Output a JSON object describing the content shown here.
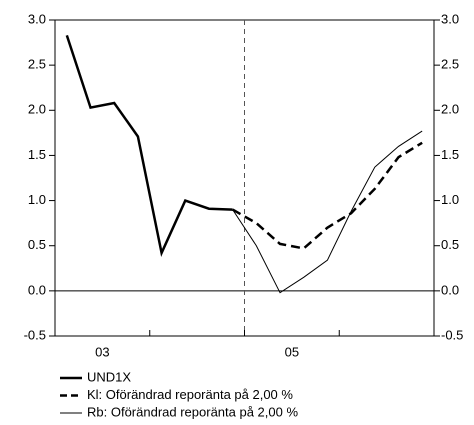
{
  "chart_data": {
    "type": "line",
    "xlim": [
      2003,
      2007
    ],
    "xticks": [
      2003,
      2004,
      2005,
      2006,
      2007
    ],
    "xlabels": [
      {
        "value": 2003.5,
        "label": "03"
      },
      {
        "value": 2005.5,
        "label": "05"
      }
    ],
    "vline": 2005,
    "ylim": [
      -0.5,
      3.0
    ],
    "yticks": [
      {
        "value": -0.5,
        "label": "-0.5"
      },
      {
        "value": 0,
        "label": "0.0"
      },
      {
        "value": 0.5,
        "label": "0.5"
      },
      {
        "value": 1,
        "label": "1.0"
      },
      {
        "value": 1.5,
        "label": "1.5"
      },
      {
        "value": 2,
        "label": "2.0"
      },
      {
        "value": 2.5,
        "label": "2.5"
      },
      {
        "value": 3,
        "label": "3.0"
      }
    ],
    "y2lim": [
      -0.5,
      3.0
    ],
    "y2ticks": [
      {
        "value": -0.5,
        "label": "-0.5"
      },
      {
        "value": 0,
        "label": "0.0"
      },
      {
        "value": 0.5,
        "label": "0.5"
      },
      {
        "value": 1,
        "label": "1.0"
      },
      {
        "value": 1.5,
        "label": "1.5"
      },
      {
        "value": 2,
        "label": "2.0"
      },
      {
        "value": 2.5,
        "label": "2.5"
      },
      {
        "value": 3,
        "label": "3.0"
      }
    ],
    "series": [
      {
        "name": "UND1X",
        "color": "#000000",
        "style": "solid",
        "width": 2.5,
        "x": [
          2003.125,
          2003.375,
          2003.625,
          2003.875,
          2004.125,
          2004.375,
          2004.625,
          2004.875
        ],
        "values": [
          2.83,
          2.03,
          2.08,
          1.71,
          0.42,
          1.0,
          0.91,
          0.9
        ]
      },
      {
        "name": "Kl: Oförändrad reporänta på 2,00 %",
        "color": "#000000",
        "style": "dashed",
        "width": 2.5,
        "x": [
          2004.875,
          2005.125,
          2005.375,
          2005.625,
          2005.875,
          2006.125,
          2006.375,
          2006.625,
          2006.875
        ],
        "values": [
          0.9,
          0.75,
          0.52,
          0.47,
          0.7,
          0.86,
          1.13,
          1.48,
          1.64
        ]
      },
      {
        "name": "Rb: Oförändrad reporänta på 2,00 %",
        "color": "#000000",
        "style": "solid",
        "width": 1,
        "x": [
          2004.875,
          2005.125,
          2005.375,
          2005.625,
          2005.875,
          2006.125,
          2006.375,
          2006.625,
          2006.875
        ],
        "values": [
          0.9,
          0.5,
          -0.02,
          0.15,
          0.34,
          0.88,
          1.37,
          1.6,
          1.77
        ]
      }
    ]
  }
}
